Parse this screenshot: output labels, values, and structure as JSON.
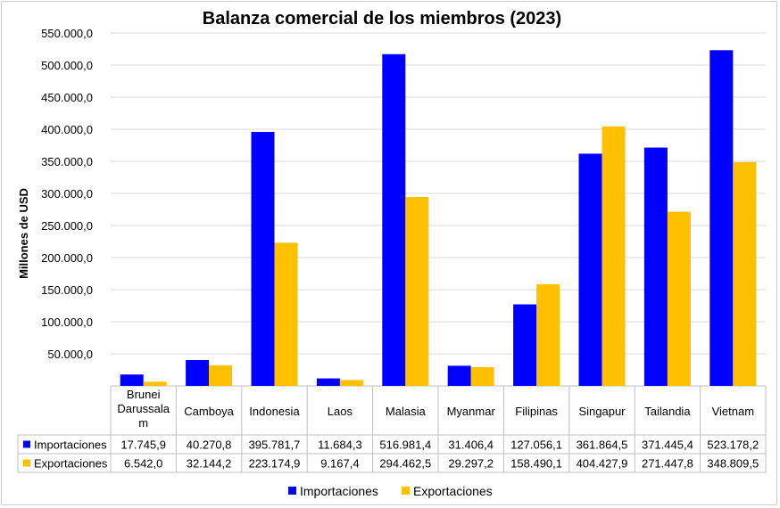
{
  "chart_data": {
    "type": "bar",
    "title": "Balanza comercial de los miembros (2023)",
    "ylabel": "Millones de USD",
    "xlabel": "",
    "ylim": [
      0,
      550000
    ],
    "ytick_step": 50000,
    "ytick_labels": [
      "",
      "50.000,0",
      "100.000,0",
      "150.000,0",
      "200.000,0",
      "250.000,0",
      "300.000,0",
      "350.000,0",
      "400.000,0",
      "450.000,0",
      "500.000,0",
      "550.000,0"
    ],
    "grid": true,
    "legend_position": "bottom",
    "categories": [
      [
        "Brunei",
        "Darussala",
        "m"
      ],
      [
        "Camboya"
      ],
      [
        "Indonesia"
      ],
      [
        "Laos"
      ],
      [
        "Malasia"
      ],
      [
        "Myanmar"
      ],
      [
        "Filipinas"
      ],
      [
        "Singapur"
      ],
      [
        "Tailandia"
      ],
      [
        "Vietnam"
      ]
    ],
    "series": [
      {
        "name": "Importaciones",
        "color": "#0000ff",
        "values": [
          17745.9,
          40270.8,
          395781.7,
          11684.3,
          516981.4,
          31406.4,
          127056.1,
          361864.5,
          371445.4,
          523178.2
        ],
        "labels": [
          "17.745,9",
          "40.270,8",
          "395.781,7",
          "11.684,3",
          "516.981,4",
          "31.406,4",
          "127.056,1",
          "361.864,5",
          "371.445,4",
          "523.178,2"
        ]
      },
      {
        "name": "Exportaciones",
        "color": "#ffc000",
        "values": [
          6542.0,
          32144.2,
          223174.9,
          9167.4,
          294462.5,
          29297.2,
          158490.1,
          404427.9,
          271447.8,
          348809.5
        ],
        "labels": [
          "6.542,0",
          "32.144,2",
          "223.174,9",
          "9.167,4",
          "294.462,5",
          "29.297,2",
          "158.490,1",
          "404.427,9",
          "271.447,8",
          "348.809,5"
        ]
      }
    ]
  }
}
